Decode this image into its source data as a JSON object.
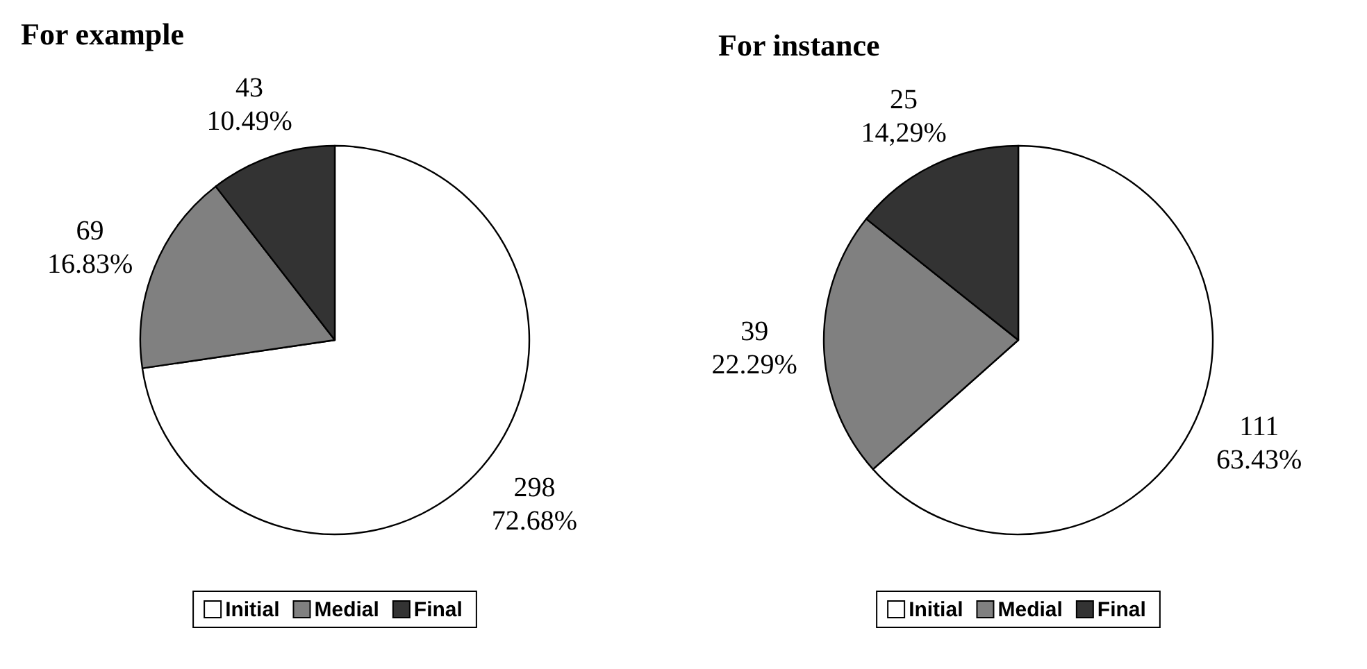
{
  "chart_data": [
    {
      "type": "pie",
      "title": "For example",
      "categories": [
        "Initial",
        "Medial",
        "Final"
      ],
      "values": [
        298,
        69,
        43
      ],
      "colors": [
        "#ffffff",
        "#808080",
        "#333333"
      ],
      "value_labels": [
        "298\n72.68%",
        "69\n16.83%",
        "43\n10.49%"
      ],
      "legend": "bottom"
    },
    {
      "type": "pie",
      "title": "For instance",
      "categories": [
        "Initial",
        "Medial",
        "Final"
      ],
      "values": [
        111,
        39,
        25
      ],
      "colors": [
        "#ffffff",
        "#808080",
        "#333333"
      ],
      "value_labels": [
        "111\n63.43%",
        "39\n22.29%",
        "25\n14,29%"
      ],
      "legend": "bottom"
    }
  ]
}
